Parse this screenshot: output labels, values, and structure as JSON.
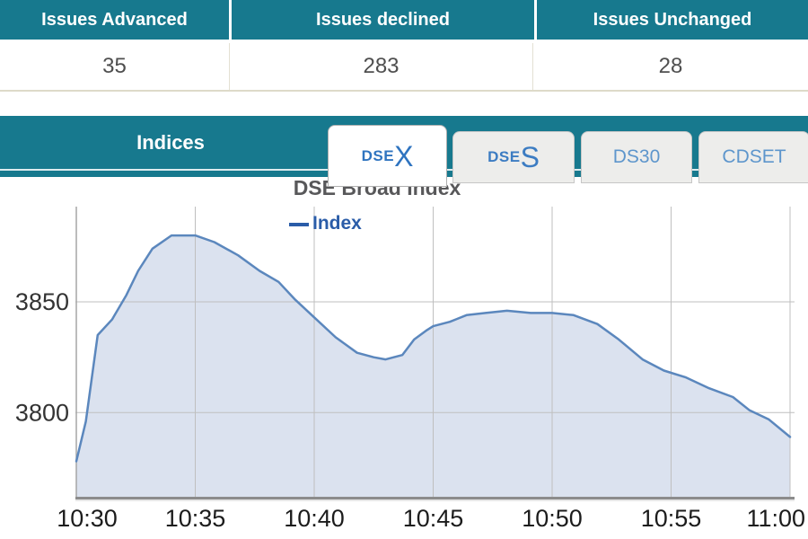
{
  "issues_table": {
    "columns": [
      {
        "header": "Issues Advanced",
        "value": "35"
      },
      {
        "header": "Issues declined",
        "value": "283"
      },
      {
        "header": "Issues Unchanged",
        "value": "28"
      }
    ]
  },
  "indices": {
    "title": "Indices",
    "tabs": [
      {
        "label_prefix": "DSE",
        "label_suffix": "X",
        "active": true
      },
      {
        "label_prefix": "DSE",
        "label_suffix": "S",
        "active": false
      },
      {
        "label": "DS30",
        "active": false
      },
      {
        "label": "CDSET",
        "active": false
      }
    ]
  },
  "chart_data": {
    "type": "area",
    "title": "DSE Broad Index",
    "legend_label": "Index",
    "legend_position": "top-left-inside",
    "grid": true,
    "x_ticks": [
      "10:30",
      "10:35",
      "10:40",
      "10:45",
      "10:50",
      "10:55",
      "11:00"
    ],
    "x_tick_interval_minutes": 5,
    "y_ticks": [
      3850,
      3800
    ],
    "xlim_minutes": [
      0,
      30
    ],
    "ylim": [
      3762,
      3893
    ],
    "series": [
      {
        "name": "Index",
        "x_minutes": [
          0,
          0.4,
          0.9,
          1.5,
          2.1,
          2.6,
          3.2,
          4,
          5,
          5.8,
          6.8,
          7.7,
          8.5,
          9.2,
          10,
          10.9,
          11.8,
          12.5,
          13,
          13.7,
          14.2,
          14.7,
          15,
          15.7,
          16.4,
          17.2,
          18.1,
          19.1,
          20,
          20.9,
          21.9,
          22.8,
          23.8,
          24.7,
          25.6,
          26.6,
          27.6,
          28.3,
          29.1,
          30
        ],
        "values": [
          3778,
          3796,
          3835,
          3842,
          3853,
          3864,
          3874,
          3880,
          3880,
          3877,
          3871,
          3864,
          3859,
          3851,
          3843,
          3834,
          3827,
          3825,
          3824,
          3826,
          3833,
          3837,
          3839,
          3841,
          3844,
          3845,
          3846,
          3845,
          3845,
          3844,
          3840,
          3833,
          3824,
          3819,
          3816,
          3811,
          3807,
          3801,
          3797,
          3789
        ]
      }
    ],
    "colors": {
      "line": "#5b87bd",
      "fill": "#dbe2ef",
      "grid": "#bfbfbf",
      "axis": "#8c8c8c",
      "tick_label": "#1c1c1c"
    }
  },
  "colors": {
    "header_teal": "#17798e",
    "active_tab_text": "#2f74c0",
    "idle_tab_text": "#5e96cc",
    "legend_blue": "#2a5ca8",
    "value_text": "#4f4f4f"
  }
}
